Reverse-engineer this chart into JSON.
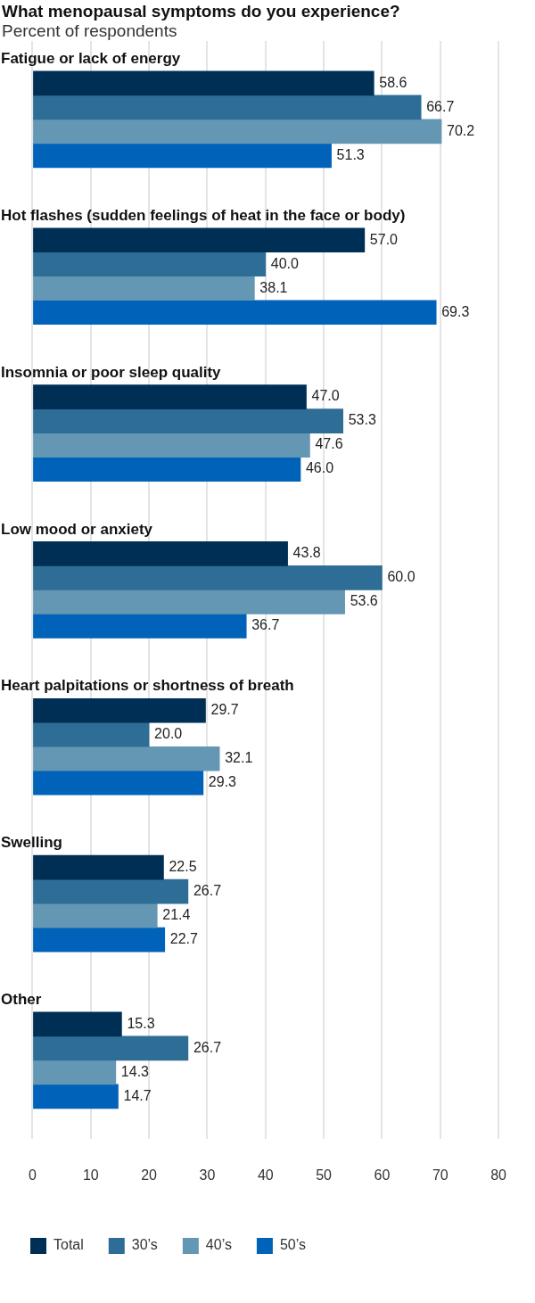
{
  "chart_data": {
    "type": "bar",
    "orientation": "horizontal",
    "title": "What menopausal symptoms do you experience?",
    "subtitle": "Percent of respondents",
    "categories": [
      "Fatigue or lack of energy",
      "Hot flashes (sudden feelings of heat in the face or body)",
      "Insomnia or poor sleep quality",
      "Low mood or anxiety",
      "Heart palpitations or shortness of breath",
      "Swelling",
      "Other"
    ],
    "series": [
      {
        "name": "Total",
        "color": "#002f55",
        "values": [
          58.6,
          57.0,
          47.0,
          43.8,
          29.7,
          22.5,
          15.3
        ],
        "value_labels": [
          "58.6",
          "57.0",
          "47.0",
          "43.8",
          "29.7",
          "22.5",
          "15.3"
        ]
      },
      {
        "name": "30’s",
        "color": "#2e6e96",
        "values": [
          66.7,
          40.0,
          53.3,
          60.0,
          20.0,
          26.7,
          26.7
        ],
        "value_labels": [
          "66.7",
          "40.0",
          "53.3",
          "60.0",
          "20.0",
          "26.7",
          "26.7"
        ]
      },
      {
        "name": "40’s",
        "color": "#6497b4",
        "values": [
          70.2,
          38.1,
          47.6,
          53.6,
          32.1,
          21.4,
          14.3
        ],
        "value_labels": [
          "70.2",
          "38.1",
          "47.6",
          "53.6",
          "32.1",
          "21.4",
          "14.3"
        ]
      },
      {
        "name": "50’s",
        "color": "#0062b8",
        "values": [
          51.3,
          69.3,
          46.0,
          36.7,
          29.3,
          22.7,
          14.7
        ],
        "value_labels": [
          "51.3",
          "69.3",
          "46.0",
          "36.7",
          "29.3",
          "22.7",
          "14.7"
        ]
      }
    ],
    "xlim": [
      0,
      80
    ],
    "xticks": [
      0,
      10,
      20,
      30,
      40,
      50,
      60,
      70,
      80
    ],
    "grid": "x",
    "legend": "bottom"
  }
}
